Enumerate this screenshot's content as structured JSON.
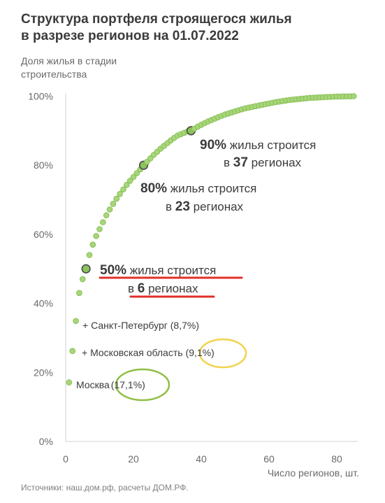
{
  "title": [
    "Структура портфеля строящегося жилья",
    "в разрезе регионов на 01.07.2022"
  ],
  "source": "Источники: наш.дом.рф, расчеты ДОМ.РФ.",
  "colors": {
    "dot": "#a8d57a",
    "dot_stroke": "#7dbb48",
    "highlight": "#8bc25a",
    "highlight_stroke": "#4a4a4a",
    "underline": "#e0302a",
    "circle_yellow": "#f2d34f",
    "circle_green": "#8fbf45"
  },
  "annotations": {
    "p50": {
      "pct": "50%",
      "text1": " жилья строится",
      "pre": "в ",
      "num": "6",
      "text2": " регионах"
    },
    "p80": {
      "pct": "80%",
      "text1": " жилья строится",
      "pre": "в ",
      "num": "23",
      "text2": " регионах"
    },
    "p90": {
      "pct": "90%",
      "text1": " жилья строится",
      "pre": "в ",
      "num": "37",
      "text2": " регионах"
    },
    "spb": {
      "pre": "+ Санкт-Петербург ",
      "val": "(8,7%)"
    },
    "mo": {
      "pre": "+ Московская область",
      "val": "(9,1%)"
    },
    "msk": {
      "pre": "Москва",
      "val": "(17,1%)"
    }
  },
  "chart_data": {
    "type": "scatter",
    "title": "Структура портфеля строящегося жилья в разрезе регионов на 01.07.2022",
    "xlabel": "Число регионов, шт.",
    "ylabel": "Доля жилья в стадии строительства",
    "xlim": [
      0,
      85
    ],
    "ylim": [
      0,
      100
    ],
    "x_ticks": [
      "0",
      "20",
      "40",
      "60",
      "80"
    ],
    "x_tick_values": [
      0,
      20,
      40,
      60,
      80
    ],
    "y_ticks": [
      "0%",
      "20%",
      "40%",
      "60%",
      "80%",
      "100%"
    ],
    "y_tick_values": [
      0,
      20,
      40,
      60,
      80,
      100
    ],
    "points_x": [
      1,
      2,
      3,
      4,
      5,
      6,
      7,
      8,
      9,
      10,
      11,
      12,
      13,
      14,
      15,
      16,
      17,
      18,
      19,
      20,
      21,
      22,
      23,
      24,
      25,
      26,
      27,
      28,
      29,
      30,
      31,
      32,
      33,
      34,
      35,
      36,
      37,
      38,
      39,
      40,
      41,
      42,
      43,
      44,
      45,
      46,
      47,
      48,
      49,
      50,
      51,
      52,
      53,
      54,
      55,
      56,
      57,
      58,
      59,
      60,
      61,
      62,
      63,
      64,
      65,
      66,
      67,
      68,
      69,
      70,
      71,
      72,
      73,
      74,
      75,
      76,
      77,
      78,
      79,
      80,
      81,
      82,
      83,
      84,
      85
    ],
    "points_y": [
      17.1,
      26.2,
      34.9,
      43.0,
      47.0,
      50.0,
      54.0,
      57.0,
      59.5,
      61.5,
      63.5,
      65.5,
      67.2,
      68.8,
      70.3,
      71.7,
      73.0,
      74.3,
      75.5,
      76.6,
      77.7,
      78.8,
      80.0,
      81.0,
      82.0,
      83.0,
      83.9,
      84.8,
      85.6,
      86.4,
      87.2,
      87.9,
      88.6,
      89.0,
      89.4,
      89.8,
      90.0,
      90.6,
      91.2,
      91.7,
      92.2,
      92.7,
      93.1,
      93.5,
      93.9,
      94.3,
      94.7,
      95.0,
      95.3,
      95.6,
      95.9,
      96.2,
      96.5,
      96.7,
      96.9,
      97.1,
      97.3,
      97.5,
      97.7,
      97.9,
      98.1,
      98.3,
      98.45,
      98.6,
      98.75,
      98.9,
      99.0,
      99.1,
      99.2,
      99.3,
      99.4,
      99.5,
      99.55,
      99.6,
      99.65,
      99.7,
      99.75,
      99.8,
      99.85,
      99.88,
      99.9,
      99.93,
      99.95,
      99.97,
      100.0
    ],
    "highlighted_x": [
      6,
      23,
      37
    ],
    "grid": false,
    "legend": "none"
  }
}
